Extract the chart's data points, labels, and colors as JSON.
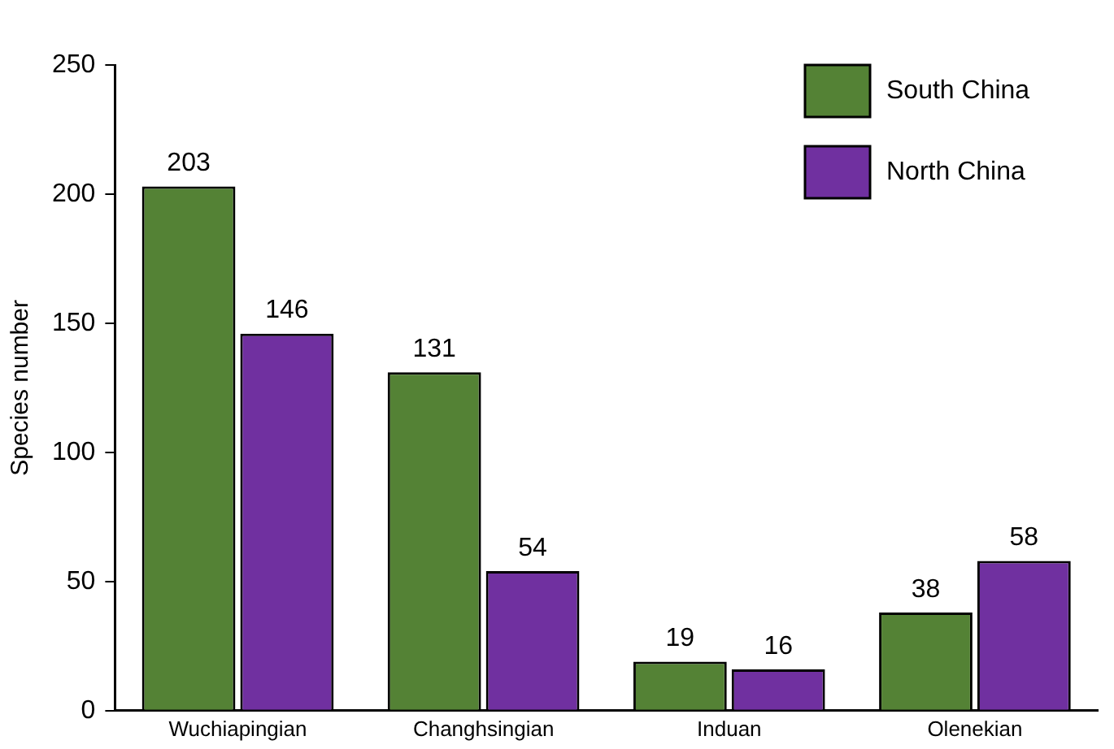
{
  "chart_data": {
    "type": "bar",
    "ylabel": "Species number",
    "categories": [
      "Wuchiapingian",
      "Changhsingian",
      "Induan",
      "Olenekian"
    ],
    "series": [
      {
        "name": "South China",
        "color": "#548235",
        "values": [
          203,
          131,
          19,
          38
        ]
      },
      {
        "name": "North China",
        "color": "#7030a0",
        "values": [
          146,
          54,
          16,
          58
        ]
      }
    ],
    "ylim": [
      0,
      250
    ],
    "yticks": [
      0,
      50,
      100,
      150,
      200,
      250
    ],
    "grid": false,
    "legend": "top right",
    "data_labels": true
  }
}
